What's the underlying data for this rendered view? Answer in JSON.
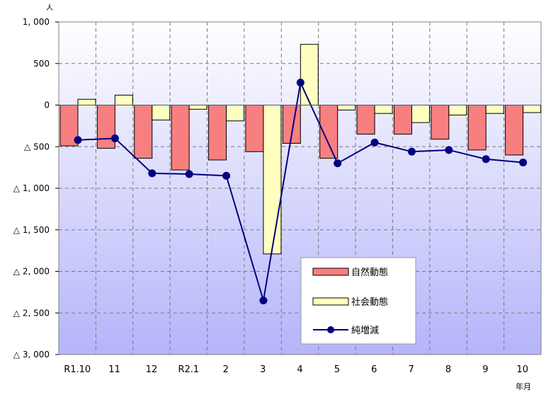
{
  "chart_data": {
    "type": "bar",
    "title": "",
    "unit_label": "人",
    "xlabel": "年月",
    "ylabel": "",
    "ylim": [
      -3000,
      1000
    ],
    "y_ticks": [
      1000,
      500,
      0,
      -500,
      -1000,
      -1500,
      -2000,
      -2500,
      -3000
    ],
    "y_tick_labels": [
      "1, 000",
      "500",
      "0",
      "△ 500",
      "△ 1, 000",
      "△ 1, 500",
      "△ 2, 000",
      "△ 2, 500",
      "△ 3, 000"
    ],
    "categories": [
      "R1.10",
      "11",
      "12",
      "R2.1",
      "2",
      "3",
      "4",
      "5",
      "6",
      "7",
      "8",
      "9",
      "10"
    ],
    "series": [
      {
        "name": "自然動態",
        "kind": "bar",
        "color": "#F87F7F",
        "values": [
          -490,
          -520,
          -640,
          -780,
          -660,
          -560,
          -460,
          -640,
          -350,
          -350,
          -410,
          -540,
          -600
        ]
      },
      {
        "name": "社会動態",
        "kind": "bar",
        "color": "#FFFFC0",
        "values": [
          70,
          120,
          -180,
          -50,
          -190,
          -1790,
          730,
          -60,
          -100,
          -210,
          -120,
          -100,
          -90
        ]
      },
      {
        "name": "純増減",
        "kind": "line",
        "color": "#000080",
        "values": [
          -420,
          -400,
          -820,
          -830,
          -850,
          -2350,
          270,
          -700,
          -450,
          -560,
          -540,
          -650,
          -690
        ]
      }
    ],
    "grid": true,
    "legend_position": "bottom-right"
  }
}
